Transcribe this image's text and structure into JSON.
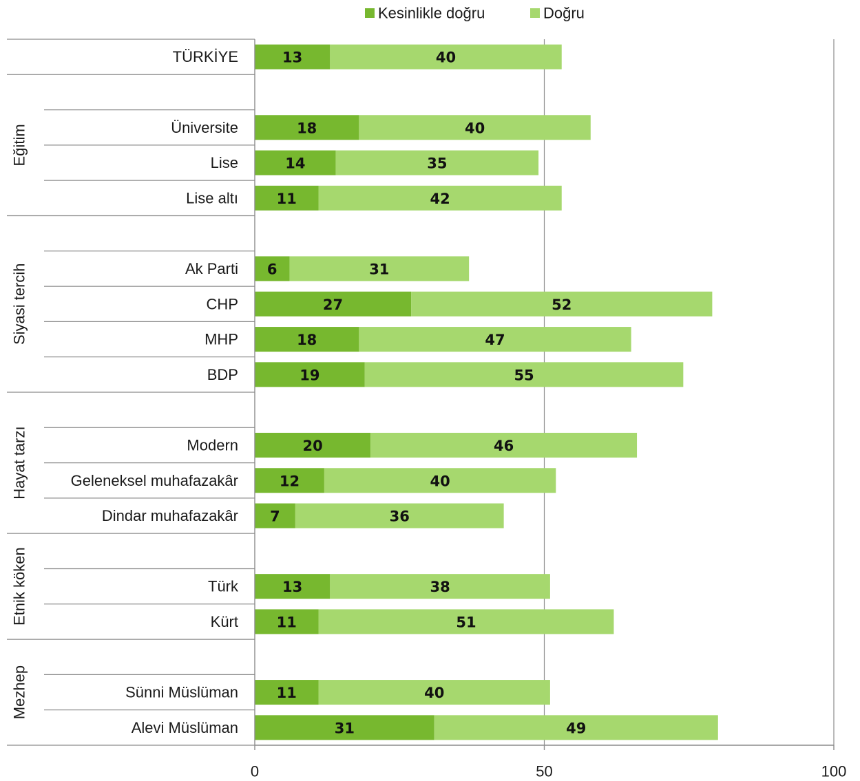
{
  "chart_data": {
    "type": "bar",
    "orientation": "horizontal",
    "stacked": true,
    "legend_position": "top",
    "xlim": [
      0,
      100
    ],
    "xticks": [
      "0",
      "50",
      "100"
    ],
    "series": [
      {
        "name": "Kesinlikle doğru",
        "color": "#77b82f"
      },
      {
        "name": "Doğru",
        "color": "#a6d86e"
      }
    ],
    "rows": [
      {
        "label": "TÜRKİYE",
        "values": [
          13,
          40
        ]
      },
      {
        "label": "",
        "values": []
      },
      {
        "label": "Üniversite",
        "values": [
          18,
          40
        ]
      },
      {
        "label": "Lise",
        "values": [
          14,
          35
        ]
      },
      {
        "label": "Lise altı",
        "values": [
          11,
          42
        ]
      },
      {
        "label": "",
        "values": []
      },
      {
        "label": "Ak Parti",
        "values": [
          6,
          31
        ]
      },
      {
        "label": "CHP",
        "values": [
          27,
          52
        ]
      },
      {
        "label": "MHP",
        "values": [
          18,
          47
        ]
      },
      {
        "label": "BDP",
        "values": [
          19,
          55
        ]
      },
      {
        "label": "",
        "values": []
      },
      {
        "label": "Modern",
        "values": [
          20,
          46
        ]
      },
      {
        "label": "Geleneksel muhafazakâr",
        "values": [
          12,
          40
        ]
      },
      {
        "label": "Dindar muhafazakâr",
        "values": [
          7,
          36
        ]
      },
      {
        "label": "",
        "values": []
      },
      {
        "label": "Türk",
        "values": [
          13,
          38
        ]
      },
      {
        "label": "Kürt",
        "values": [
          11,
          51
        ]
      },
      {
        "label": "",
        "values": []
      },
      {
        "label": "Sünni Müslüman",
        "values": [
          11,
          40
        ]
      },
      {
        "label": "Alevi Müslüman",
        "values": [
          31,
          49
        ]
      }
    ],
    "groups": [
      {
        "label": "Eğitim",
        "from": 1,
        "to": 4
      },
      {
        "label": "Siyasi tercih",
        "from": 5,
        "to": 9
      },
      {
        "label": "Hayat tarzı",
        "from": 10,
        "to": 13
      },
      {
        "label": "Etnik köken",
        "from": 14,
        "to": 16
      },
      {
        "label": "Mezhep",
        "from": 17,
        "to": 19
      }
    ],
    "grid": true
  }
}
